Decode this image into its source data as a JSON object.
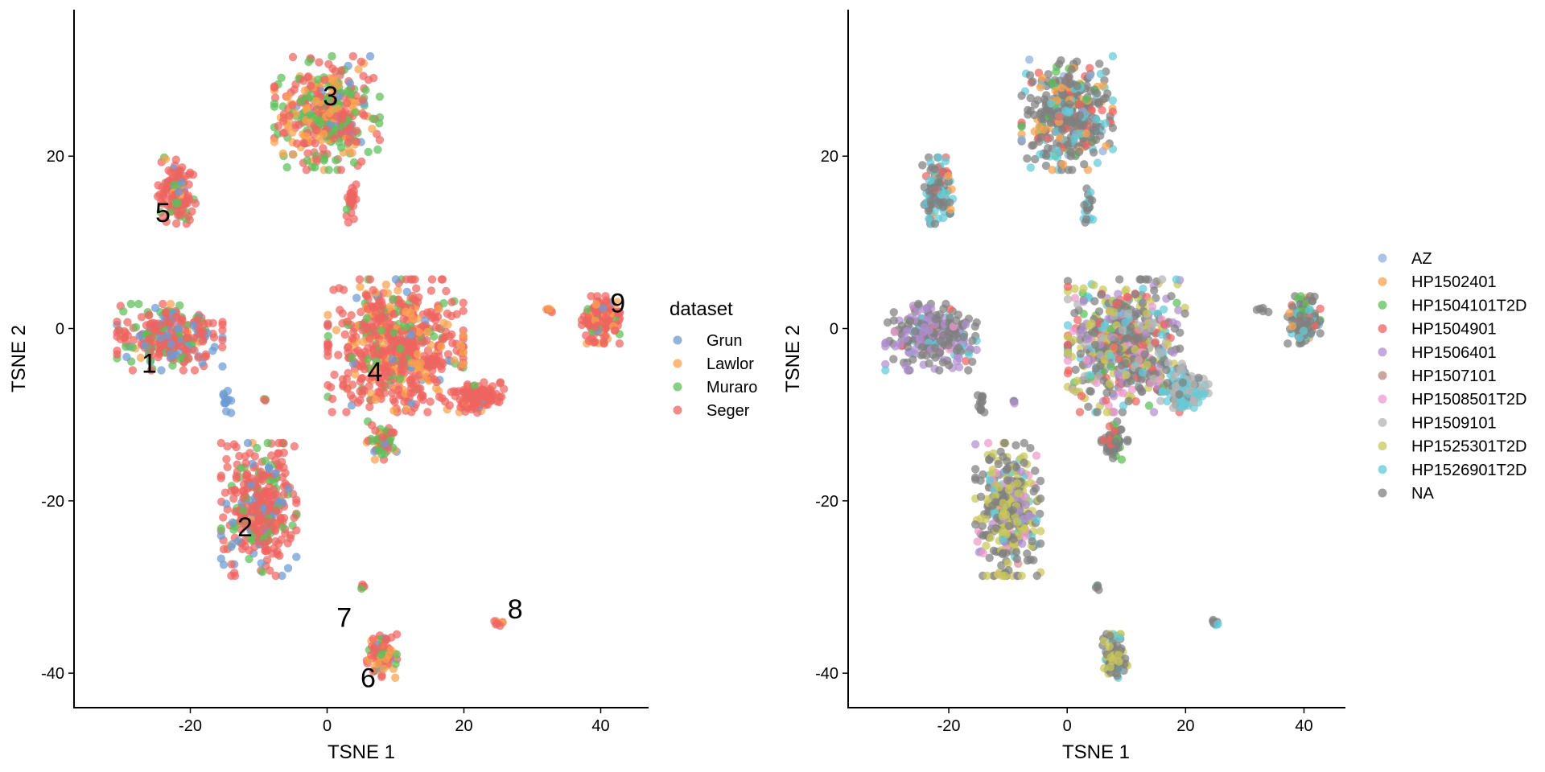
{
  "chart_data": [
    {
      "type": "scatter",
      "id": "left",
      "title": "",
      "xlabel": "TSNE 1",
      "ylabel": "TSNE 2",
      "xlim": [
        -37,
        47
      ],
      "ylim": [
        -44,
        37
      ],
      "xticks": [
        -20,
        0,
        20,
        40
      ],
      "yticks": [
        -40,
        -20,
        0,
        20
      ],
      "xtick_labels": [
        "-20",
        "0",
        "20",
        "40"
      ],
      "ytick_labels": [
        "-40",
        "-20",
        "0",
        "20"
      ],
      "grid": false,
      "legend": {
        "title": "dataset",
        "placement": "right",
        "entries": [
          {
            "name": "Grun",
            "color": "#6C9BD2"
          },
          {
            "name": "Lawlor",
            "color": "#FBA24E"
          },
          {
            "name": "Muraro",
            "color": "#5DBF5A"
          },
          {
            "name": "Seger",
            "color": "#EE6460"
          }
        ]
      },
      "cluster_labels": [
        {
          "label": "1",
          "x": -26,
          "y": -4
        },
        {
          "label": "2",
          "x": -12,
          "y": -23
        },
        {
          "label": "3",
          "x": 0.5,
          "y": 27
        },
        {
          "label": "4",
          "x": 7,
          "y": -5
        },
        {
          "label": "5",
          "x": -24,
          "y": 13.5
        },
        {
          "label": "6",
          "x": 6,
          "y": -40.5
        },
        {
          "label": "7",
          "x": 2.5,
          "y": -33.5
        },
        {
          "label": "8",
          "x": 27.5,
          "y": -32.5
        },
        {
          "label": "9",
          "x": 42.5,
          "y": 3
        }
      ],
      "clusters": [
        {
          "id": "1",
          "cx": -23,
          "cy": -1,
          "rx": 7,
          "ry": 3.5,
          "n": 280,
          "mix": {
            "Grun": 0.22,
            "Lawlor": 0.02,
            "Muraro": 0.2,
            "Seger": 0.56
          }
        },
        {
          "id": "2",
          "cx": -10,
          "cy": -21,
          "rx": 5,
          "ry": 7,
          "n": 380,
          "mix": {
            "Grun": 0.15,
            "Lawlor": 0.02,
            "Muraro": 0.15,
            "Seger": 0.68
          }
        },
        {
          "id": "3",
          "cx": 0,
          "cy": 25,
          "rx": 7,
          "ry": 6,
          "n": 400,
          "mix": {
            "Grun": 0.05,
            "Lawlor": 0.22,
            "Muraro": 0.3,
            "Seger": 0.43
          }
        },
        {
          "id": "4",
          "cx": 10,
          "cy": -2,
          "rx": 9,
          "ry": 7,
          "n": 650,
          "mix": {
            "Grun": 0.05,
            "Lawlor": 0.15,
            "Muraro": 0.1,
            "Seger": 0.7
          }
        },
        {
          "id": "5",
          "cx": -22,
          "cy": 16,
          "rx": 2.5,
          "ry": 3.5,
          "n": 130,
          "mix": {
            "Grun": 0.08,
            "Lawlor": 0.05,
            "Muraro": 0.17,
            "Seger": 0.7
          }
        },
        {
          "id": "6",
          "cx": 8,
          "cy": -38,
          "rx": 2,
          "ry": 2.3,
          "n": 90,
          "mix": {
            "Grun": 0.05,
            "Lawlor": 0.3,
            "Muraro": 0.15,
            "Seger": 0.5
          }
        },
        {
          "id": "7",
          "cx": 5.3,
          "cy": -30,
          "rx": 0.4,
          "ry": 0.5,
          "n": 5,
          "mix": {
            "Grun": 0,
            "Lawlor": 0.2,
            "Muraro": 0.2,
            "Seger": 0.6
          }
        },
        {
          "id": "8",
          "cx": 25,
          "cy": -34.2,
          "rx": 0.6,
          "ry": 0.4,
          "n": 7,
          "mix": {
            "Grun": 0,
            "Lawlor": 0.3,
            "Muraro": 0,
            "Seger": 0.7
          }
        },
        {
          "id": "9",
          "cx": 40,
          "cy": 1,
          "rx": 2.5,
          "ry": 2.5,
          "n": 140,
          "mix": {
            "Grun": 0.1,
            "Lawlor": 0.15,
            "Muraro": 0.1,
            "Seger": 0.65
          }
        },
        {
          "id": "4b",
          "cx": 22,
          "cy": -8,
          "rx": 3.5,
          "ry": 1.6,
          "n": 120,
          "mix": {
            "Grun": 0.05,
            "Lawlor": 0.05,
            "Muraro": 0.05,
            "Seger": 0.85
          }
        },
        {
          "id": "4c",
          "cx": 8,
          "cy": -13,
          "rx": 2,
          "ry": 2,
          "n": 60,
          "mix": {
            "Grun": 0.05,
            "Lawlor": 0.1,
            "Muraro": 0.4,
            "Seger": 0.45
          }
        },
        {
          "id": "3b",
          "cx": 3.5,
          "cy": 14.5,
          "rx": 0.8,
          "ry": 2,
          "n": 25,
          "mix": {
            "Grun": 0,
            "Lawlor": 0.05,
            "Muraro": 0.05,
            "Seger": 0.9
          }
        },
        {
          "id": "br1",
          "cx": -14.5,
          "cy": -8.5,
          "rx": 0.6,
          "ry": 1.3,
          "n": 12,
          "mix": {
            "Grun": 1,
            "Lawlor": 0,
            "Muraro": 0,
            "Seger": 0
          }
        },
        {
          "id": "br2",
          "cx": -9,
          "cy": -8.5,
          "rx": 0.3,
          "ry": 0.4,
          "n": 3,
          "mix": {
            "Grun": 0,
            "Lawlor": 0,
            "Muraro": 0.6,
            "Seger": 0.4
          }
        },
        {
          "id": "br3",
          "cx": 33,
          "cy": 2.2,
          "rx": 1.5,
          "ry": 0.3,
          "n": 5,
          "mix": {
            "Grun": 0,
            "Lawlor": 0.4,
            "Muraro": 0,
            "Seger": 0.6
          }
        }
      ]
    },
    {
      "type": "scatter",
      "id": "right",
      "title": "",
      "xlabel": "TSNE 1",
      "ylabel": "TSNE 2",
      "xlim": [
        -37,
        47
      ],
      "ylim": [
        -44,
        37
      ],
      "xticks": [
        -20,
        0,
        20,
        40
      ],
      "yticks": [
        -40,
        -20,
        0,
        20
      ],
      "xtick_labels": [
        "-20",
        "0",
        "20",
        "40"
      ],
      "ytick_labels": [
        "-40",
        "-20",
        "0",
        "20"
      ],
      "grid": false,
      "legend": {
        "title": "",
        "placement": "right",
        "entries": [
          {
            "name": "AZ",
            "color": "#8DB0DC"
          },
          {
            "name": "HP1502401",
            "color": "#FBA24E"
          },
          {
            "name": "HP1504101T2D",
            "color": "#5DBF5A"
          },
          {
            "name": "HP1504901",
            "color": "#EE6460"
          },
          {
            "name": "HP1506401",
            "color": "#B08FD0"
          },
          {
            "name": "HP1507101",
            "color": "#B88A82"
          },
          {
            "name": "HP1508501T2D",
            "color": "#EE9ACD"
          },
          {
            "name": "HP1509101",
            "color": "#B4B4B4"
          },
          {
            "name": "HP1525301T2D",
            "color": "#C9C85A"
          },
          {
            "name": "HP1526901T2D",
            "color": "#64CAD8"
          },
          {
            "name": "NA",
            "color": "#808080"
          }
        ]
      },
      "clusters": [
        {
          "id": "1",
          "cx": -23,
          "cy": -1,
          "rx": 7,
          "ry": 3.5,
          "n": 280,
          "mix": {
            "NA": 0.55,
            "HP1506401": 0.25,
            "HP1526901T2D": 0.1,
            "HP1504901": 0.05,
            "HP1508501T2D": 0.05
          }
        },
        {
          "id": "2",
          "cx": -10,
          "cy": -21,
          "rx": 5,
          "ry": 7,
          "n": 380,
          "mix": {
            "NA": 0.42,
            "HP1525301T2D": 0.33,
            "HP1506401": 0.1,
            "HP1508501T2D": 0.08,
            "HP1526901T2D": 0.07
          }
        },
        {
          "id": "3",
          "cx": 0,
          "cy": 25,
          "rx": 7,
          "ry": 6,
          "n": 400,
          "mix": {
            "NA": 0.55,
            "HP1526901T2D": 0.15,
            "HP1502401": 0.1,
            "HP1504901": 0.08,
            "HP1504101T2D": 0.07,
            "AZ": 0.05
          }
        },
        {
          "id": "4",
          "cx": 10,
          "cy": -2,
          "rx": 9,
          "ry": 7,
          "n": 650,
          "mix": {
            "NA": 0.35,
            "HP1525301T2D": 0.15,
            "HP1526901T2D": 0.12,
            "HP1504901": 0.12,
            "HP1506401": 0.1,
            "HP1509101": 0.08,
            "HP1508501T2D": 0.05,
            "HP1504101T2D": 0.03
          }
        },
        {
          "id": "5",
          "cx": -22,
          "cy": 16,
          "rx": 2.5,
          "ry": 3.5,
          "n": 130,
          "mix": {
            "NA": 0.45,
            "HP1526901T2D": 0.35,
            "HP1504901": 0.1,
            "HP1502401": 0.1
          }
        },
        {
          "id": "6",
          "cx": 8,
          "cy": -38,
          "rx": 2,
          "ry": 2.3,
          "n": 90,
          "mix": {
            "NA": 0.5,
            "HP1525301T2D": 0.4,
            "HP1526901T2D": 0.1
          }
        },
        {
          "id": "7",
          "cx": 5.3,
          "cy": -30,
          "rx": 0.4,
          "ry": 0.5,
          "n": 5,
          "mix": {
            "NA": 0.5,
            "HP1526901T2D": 0.5
          }
        },
        {
          "id": "8",
          "cx": 25,
          "cy": -34.2,
          "rx": 0.6,
          "ry": 0.4,
          "n": 7,
          "mix": {
            "NA": 0.5,
            "HP1526901T2D": 0.3,
            "HP1502401": 0.2
          }
        },
        {
          "id": "9",
          "cx": 40,
          "cy": 1,
          "rx": 2.5,
          "ry": 2.5,
          "n": 140,
          "mix": {
            "NA": 0.45,
            "HP1526901T2D": 0.3,
            "HP1504101T2D": 0.1,
            "HP1504901": 0.1,
            "HP1502401": 0.05
          }
        },
        {
          "id": "4b",
          "cx": 20,
          "cy": -7,
          "rx": 3.5,
          "ry": 2,
          "n": 120,
          "mix": {
            "HP1526901T2D": 0.55,
            "HP1509101": 0.3,
            "NA": 0.15
          }
        },
        {
          "id": "4c",
          "cx": 8,
          "cy": -13,
          "rx": 2,
          "ry": 2,
          "n": 60,
          "mix": {
            "NA": 0.7,
            "HP1504101T2D": 0.15,
            "HP1504901": 0.15
          }
        },
        {
          "id": "3b",
          "cx": 3.5,
          "cy": 14.5,
          "rx": 0.8,
          "ry": 2,
          "n": 25,
          "mix": {
            "NA": 0.6,
            "HP1526901T2D": 0.4
          }
        },
        {
          "id": "br1",
          "cx": -14.5,
          "cy": -8.5,
          "rx": 0.6,
          "ry": 1.3,
          "n": 12,
          "mix": {
            "NA": 1
          }
        },
        {
          "id": "br2",
          "cx": -9,
          "cy": -8.5,
          "rx": 0.3,
          "ry": 0.4,
          "n": 3,
          "mix": {
            "NA": 0.6,
            "HP1506401": 0.4
          }
        },
        {
          "id": "br3",
          "cx": 33,
          "cy": 2.2,
          "rx": 1.5,
          "ry": 0.3,
          "n": 5,
          "mix": {
            "NA": 1
          }
        }
      ]
    }
  ]
}
